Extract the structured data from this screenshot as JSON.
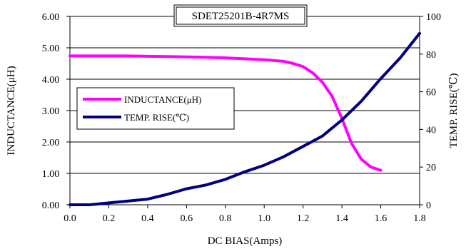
{
  "chart_data": {
    "type": "line",
    "title": "SDET25201B-4R7MS",
    "xlabel": "DC BIAS(Amps)",
    "ylabel_left": "INDUCTANCE(μH)",
    "ylabel_right": "TEMP. RISE(℃)",
    "xlim": [
      0.0,
      1.8
    ],
    "ylim_left": [
      0.0,
      6.0
    ],
    "ylim_right": [
      0,
      100
    ],
    "x_ticks": [
      "0.0",
      "0.2",
      "0.4",
      "0.6",
      "0.8",
      "1.0",
      "1.2",
      "1.4",
      "1.6",
      "1.8"
    ],
    "y_left_ticks": [
      "0.00",
      "1.00",
      "2.00",
      "3.00",
      "4.00",
      "5.00",
      "6.00"
    ],
    "y_right_ticks": [
      "0",
      "20",
      "40",
      "60",
      "80",
      "100"
    ],
    "grid": "horizontal",
    "legend_position": "left-middle",
    "series": [
      {
        "name": "INDUCTANCE(μH)",
        "axis": "left",
        "color": "#ff00ff",
        "x": [
          0.0,
          0.1,
          0.2,
          0.3,
          0.4,
          0.5,
          0.6,
          0.7,
          0.8,
          0.9,
          1.0,
          1.1,
          1.15,
          1.2,
          1.25,
          1.3,
          1.35,
          1.4,
          1.45,
          1.5,
          1.55,
          1.6
        ],
        "values": [
          4.74,
          4.74,
          4.74,
          4.74,
          4.73,
          4.72,
          4.71,
          4.7,
          4.68,
          4.65,
          4.62,
          4.57,
          4.5,
          4.4,
          4.2,
          3.9,
          3.45,
          2.75,
          1.95,
          1.45,
          1.2,
          1.1
        ]
      },
      {
        "name": "TEMP. RISE(℃)",
        "axis": "right",
        "color": "#000080",
        "x": [
          0.0,
          0.1,
          0.2,
          0.3,
          0.4,
          0.5,
          0.6,
          0.7,
          0.8,
          0.9,
          1.0,
          1.1,
          1.2,
          1.3,
          1.4,
          1.5,
          1.6,
          1.7,
          1.8
        ],
        "values": [
          0,
          0,
          1,
          2,
          3,
          5.5,
          8.5,
          10.5,
          13.5,
          17.5,
          21,
          25.5,
          31,
          36.5,
          45,
          55,
          67,
          78,
          91
        ]
      }
    ]
  }
}
